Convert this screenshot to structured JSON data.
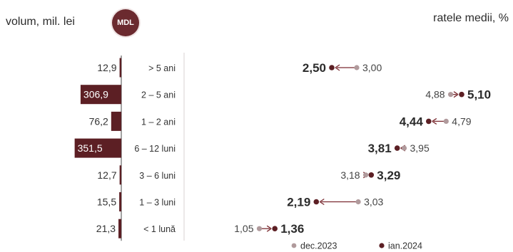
{
  "header": {
    "volume_title": "volum, mil. lei",
    "badge": "MDL",
    "rates_title": "ratele medii, %"
  },
  "colors": {
    "bar": "#5c1f24",
    "dec_marker": "#b09a9c",
    "jan_marker": "#5c1f24",
    "arrow": "#7a2a30",
    "axis": "#666666",
    "divider": "#d8d0d0",
    "text": "#333333"
  },
  "chart_data": [
    {
      "type": "bar",
      "orientation": "horizontal",
      "categories": [
        "> 5 ani",
        "2 – 5 ani",
        "1 – 2 ani",
        "6 – 12 luni",
        "3 – 6 luni",
        "1 – 3 luni",
        "< 1 lună"
      ],
      "values": [
        12.9,
        306.9,
        76.2,
        351.5,
        12.7,
        15.5,
        21.3
      ],
      "value_labels": [
        "12,9",
        "306,9",
        "76,2",
        "351,5",
        "12,7",
        "15,5",
        "21,3"
      ],
      "title": "volum, mil. lei"
    },
    {
      "type": "scatter",
      "subtype": "dumbbell",
      "categories": [
        "> 5 ani",
        "2 – 5 ani",
        "1 – 2 ani",
        "6 – 12 luni",
        "3 – 6 luni",
        "1 – 3 luni",
        "< 1 lună"
      ],
      "series": [
        {
          "name": "dec.2023",
          "values": [
            3.0,
            4.88,
            4.79,
            3.95,
            3.18,
            3.03,
            1.05
          ],
          "labels": [
            "3,00",
            "4,88",
            "4,79",
            "3,95",
            "3,18",
            "3,03",
            "1,05"
          ]
        },
        {
          "name": "ian.2024",
          "values": [
            2.5,
            5.1,
            4.44,
            3.81,
            3.29,
            2.19,
            1.36
          ],
          "labels": [
            "2,50",
            "5,10",
            "4,44",
            "3,81",
            "3,29",
            "2,19",
            "1,36"
          ]
        }
      ],
      "title": "ratele medii, %",
      "legend": "bottom-right"
    }
  ]
}
